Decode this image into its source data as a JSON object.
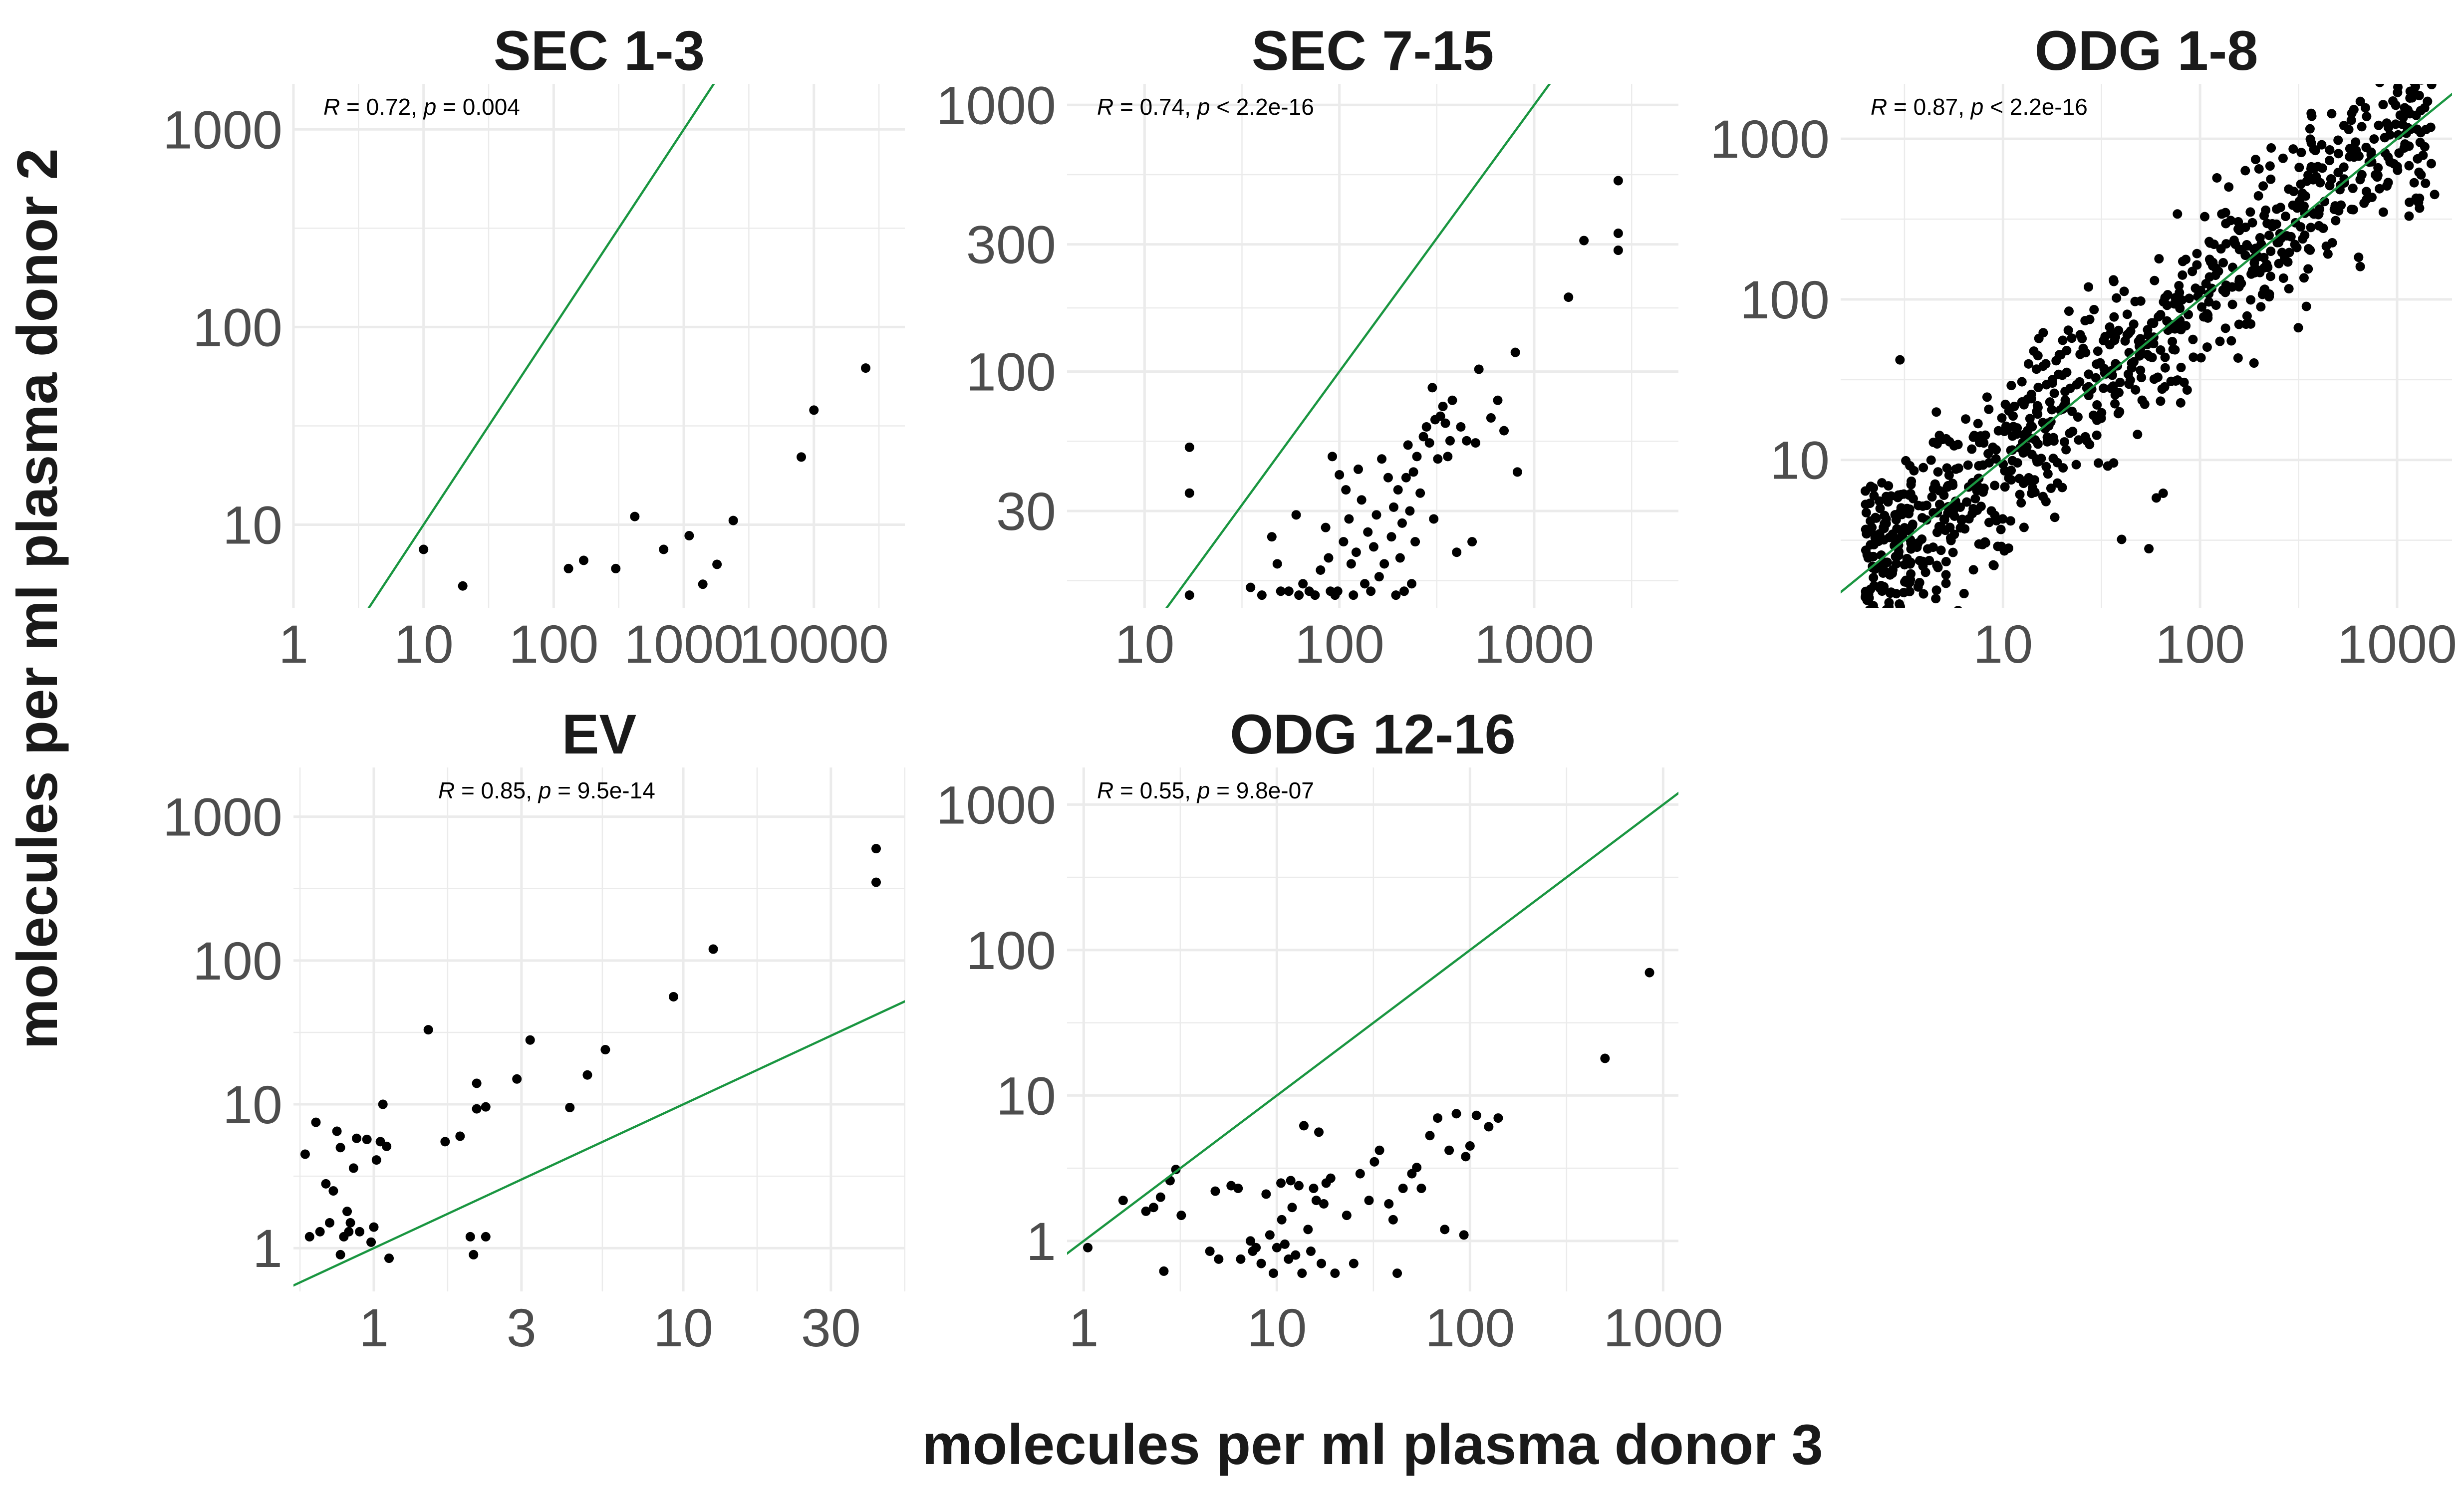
{
  "figure": {
    "xlabel": "molecules per ml plasma donor 3",
    "ylabel": "molecules per ml plasma donor 2",
    "reference_line_color": "#1a9641",
    "point_color": "#000000",
    "grid_color": "#ebebeb",
    "tick_label_color": "#4d4d4d"
  },
  "chart_data": [
    {
      "type": "scatter",
      "title": "SEC 1-3",
      "annotation": {
        "r": "0.72",
        "p_op": "=",
        "p": "0.004"
      },
      "xscale": "log10",
      "yscale": "log10",
      "xlim": [
        1,
        50000
      ],
      "ylim": [
        3.8,
        1700
      ],
      "xticks": [
        1,
        10,
        100,
        1000,
        10000
      ],
      "xtick_labels": [
        "1",
        "10",
        "100",
        "1000",
        "10000"
      ],
      "yticks": [
        10,
        100,
        1000
      ],
      "ytick_labels": [
        "10",
        "100",
        "1000"
      ],
      "reference_line": "y = x",
      "points": [
        [
          10,
          7.5
        ],
        [
          20,
          4.9
        ],
        [
          130,
          6
        ],
        [
          170,
          6.6
        ],
        [
          300,
          6
        ],
        [
          420,
          11
        ],
        [
          700,
          7.5
        ],
        [
          1100,
          8.8
        ],
        [
          1400,
          5
        ],
        [
          1800,
          6.3
        ],
        [
          2400,
          10.5
        ],
        [
          8000,
          22
        ],
        [
          10000,
          38
        ],
        [
          25000,
          62
        ]
      ]
    },
    {
      "type": "scatter",
      "title": "SEC 7-15",
      "annotation": {
        "r": "0.74",
        "p_op": "<",
        "p": "2.2e-16"
      },
      "xscale": "log10",
      "yscale": "log10",
      "xlim": [
        4,
        5500
      ],
      "ylim": [
        13,
        1200
      ],
      "xticks": [
        10,
        100,
        1000
      ],
      "xtick_labels": [
        "10",
        "100",
        "1000"
      ],
      "yticks": [
        30,
        100,
        300,
        1000
      ],
      "ytick_labels": [
        "30",
        "100",
        "300",
        "1000"
      ],
      "reference_line": "y = x",
      "points": [
        [
          17,
          52
        ],
        [
          17,
          35
        ],
        [
          17,
          14.5
        ],
        [
          35,
          15.5
        ],
        [
          40,
          14.5
        ],
        [
          45,
          24
        ],
        [
          48,
          19
        ],
        [
          50,
          15
        ],
        [
          55,
          15
        ],
        [
          60,
          29
        ],
        [
          62,
          14.5
        ],
        [
          65,
          16
        ],
        [
          70,
          15
        ],
        [
          75,
          14.5
        ],
        [
          80,
          18
        ],
        [
          85,
          26
        ],
        [
          88,
          20
        ],
        [
          90,
          15
        ],
        [
          92,
          48
        ],
        [
          95,
          14.5
        ],
        [
          98,
          15
        ],
        [
          100,
          41
        ],
        [
          105,
          23
        ],
        [
          108,
          36
        ],
        [
          112,
          28
        ],
        [
          115,
          19
        ],
        [
          118,
          14.5
        ],
        [
          122,
          21
        ],
        [
          125,
          43
        ],
        [
          130,
          33
        ],
        [
          135,
          16
        ],
        [
          140,
          25
        ],
        [
          145,
          15
        ],
        [
          150,
          22
        ],
        [
          155,
          29
        ],
        [
          160,
          17
        ],
        [
          165,
          47
        ],
        [
          170,
          19
        ],
        [
          178,
          40
        ],
        [
          185,
          24
        ],
        [
          190,
          31
        ],
        [
          195,
          14.5
        ],
        [
          200,
          36
        ],
        [
          205,
          20
        ],
        [
          210,
          27
        ],
        [
          215,
          15
        ],
        [
          220,
          40
        ],
        [
          225,
          53
        ],
        [
          230,
          30
        ],
        [
          235,
          16
        ],
        [
          240,
          42
        ],
        [
          245,
          23
        ],
        [
          250,
          48
        ],
        [
          260,
          35
        ],
        [
          270,
          57
        ],
        [
          280,
          62
        ],
        [
          290,
          54
        ],
        [
          300,
          87
        ],
        [
          305,
          28
        ],
        [
          310,
          66
        ],
        [
          320,
          47
        ],
        [
          330,
          68
        ],
        [
          340,
          74
        ],
        [
          350,
          64
        ],
        [
          360,
          48
        ],
        [
          370,
          55
        ],
        [
          380,
          78
        ],
        [
          400,
          21
        ],
        [
          420,
          62
        ],
        [
          450,
          55
        ],
        [
          480,
          23
        ],
        [
          500,
          54
        ],
        [
          520,
          102
        ],
        [
          600,
          67
        ],
        [
          650,
          78
        ],
        [
          700,
          60
        ],
        [
          800,
          118
        ],
        [
          820,
          42
        ],
        [
          1500,
          190
        ],
        [
          1800,
          310
        ],
        [
          2700,
          520
        ],
        [
          2700,
          330
        ],
        [
          2700,
          285
        ]
      ]
    },
    {
      "type": "scatter",
      "title": "ODG 1-8",
      "annotation": {
        "r": "0.87",
        "p_op": "<",
        "p": "2.2e-16"
      },
      "xscale": "log10",
      "yscale": "log10",
      "xlim": [
        1.5,
        1900
      ],
      "ylim": [
        1.2,
        2200
      ],
      "xticks": [
        10,
        100,
        1000
      ],
      "xtick_labels": [
        "10",
        "100",
        "1000"
      ],
      "yticks": [
        10,
        100,
        1000
      ],
      "ytick_labels": [
        "10",
        "100",
        "1000"
      ],
      "reference_line": "y = x",
      "cloud": {
        "n": 880,
        "x_min": 2,
        "x_max": 1500,
        "slope": 1.0,
        "spread": 0.27
      },
      "points": [
        [
          1250,
          1400
        ],
        [
          1150,
          900
        ],
        [
          1150,
          680
        ],
        [
          1300,
          370
        ],
        [
          1150,
          330
        ],
        [
          1550,
          450
        ],
        [
          800,
          660
        ],
        [
          700,
          420
        ],
        [
          650,
          160
        ],
        [
          3,
          42
        ],
        [
          2.5,
          4
        ],
        [
          2.2,
          2.5
        ],
        [
          60,
          5.8
        ],
        [
          65,
          6.2
        ],
        [
          55,
          2.8
        ],
        [
          16,
          62
        ],
        [
          30,
          22
        ],
        [
          40,
          3.2
        ],
        [
          9,
          2.2
        ],
        [
          3.4,
          2.3
        ],
        [
          24,
          18.5
        ],
        [
          45,
          40
        ]
      ]
    },
    {
      "type": "scatter",
      "title": "EV",
      "annotation": {
        "r": "0.85",
        "p_op": "=",
        "p": "9.5e-14"
      },
      "xscale": "log10",
      "yscale": "log10",
      "xlim": [
        0.55,
        52
      ],
      "ylim": [
        0.5,
        2200
      ],
      "xticks": [
        1,
        3,
        10,
        30
      ],
      "xtick_labels": [
        "1",
        "3",
        "10",
        "30"
      ],
      "yticks": [
        1,
        10,
        100,
        1000
      ],
      "ytick_labels": [
        "1",
        "10",
        "100",
        "1000"
      ],
      "reference_line": "y = x",
      "points": [
        [
          0.6,
          4.5
        ],
        [
          0.62,
          1.2
        ],
        [
          0.65,
          7.5
        ],
        [
          0.67,
          1.3
        ],
        [
          0.7,
          2.8
        ],
        [
          0.72,
          1.5
        ],
        [
          0.74,
          2.5
        ],
        [
          0.76,
          6.5
        ],
        [
          0.78,
          5
        ],
        [
          0.78,
          0.9
        ],
        [
          0.8,
          1.2
        ],
        [
          0.82,
          1.8
        ],
        [
          0.83,
          1.3
        ],
        [
          0.84,
          1.5
        ],
        [
          0.86,
          3.6
        ],
        [
          0.88,
          5.8
        ],
        [
          0.9,
          1.3
        ],
        [
          0.95,
          5.7
        ],
        [
          0.98,
          1.1
        ],
        [
          1.0,
          1.4
        ],
        [
          1.02,
          4.1
        ],
        [
          1.05,
          5.5
        ],
        [
          1.07,
          10
        ],
        [
          1.1,
          5.1
        ],
        [
          1.12,
          0.85
        ],
        [
          1.5,
          33
        ],
        [
          1.7,
          5.5
        ],
        [
          1.9,
          6
        ],
        [
          2.05,
          1.2
        ],
        [
          2.1,
          0.9
        ],
        [
          2.15,
          14
        ],
        [
          2.15,
          9.3
        ],
        [
          2.3,
          9.6
        ],
        [
          2.3,
          1.2
        ],
        [
          2.9,
          15
        ],
        [
          3.2,
          28
        ],
        [
          4.3,
          9.5
        ],
        [
          4.9,
          16
        ],
        [
          5.6,
          24
        ],
        [
          9.3,
          56
        ],
        [
          12.5,
          120
        ],
        [
          42,
          600
        ],
        [
          42,
          350
        ]
      ]
    },
    {
      "type": "scatter",
      "title": "ODG 12-16",
      "annotation": {
        "r": "0.55",
        "p_op": "=",
        "p": "9.8e-07"
      },
      "xscale": "log10",
      "yscale": "log10",
      "xlim": [
        0.82,
        1200
      ],
      "ylim": [
        0.45,
        1800
      ],
      "xticks": [
        1,
        10,
        100,
        1000
      ],
      "xtick_labels": [
        "1",
        "10",
        "100",
        "1000"
      ],
      "yticks": [
        1,
        10,
        100,
        1000
      ],
      "ytick_labels": [
        "1",
        "10",
        "100",
        "1000"
      ],
      "reference_line": "y = x",
      "points": [
        [
          1.05,
          0.9
        ],
        [
          1.6,
          1.9
        ],
        [
          2.1,
          1.6
        ],
        [
          2.3,
          1.7
        ],
        [
          2.5,
          2
        ],
        [
          2.6,
          0.62
        ],
        [
          2.8,
          2.6
        ],
        [
          3.0,
          3.1
        ],
        [
          3.2,
          1.5
        ],
        [
          4.5,
          0.85
        ],
        [
          4.8,
          2.2
        ],
        [
          5.0,
          0.75
        ],
        [
          5.8,
          2.4
        ],
        [
          6.3,
          2.3
        ],
        [
          6.5,
          0.75
        ],
        [
          7.3,
          1
        ],
        [
          7.5,
          0.85
        ],
        [
          7.8,
          0.9
        ],
        [
          8.3,
          0.7
        ],
        [
          8.8,
          2.1
        ],
        [
          9.2,
          1.1
        ],
        [
          9.6,
          0.6
        ],
        [
          10,
          0.9
        ],
        [
          10.5,
          2.5
        ],
        [
          10.6,
          1.4
        ],
        [
          11,
          0.95
        ],
        [
          11.5,
          0.75
        ],
        [
          11.8,
          2.6
        ],
        [
          12,
          1.7
        ],
        [
          12.5,
          0.8
        ],
        [
          13,
          2.4
        ],
        [
          13.5,
          0.6
        ],
        [
          13.8,
          6.2
        ],
        [
          14.5,
          1.2
        ],
        [
          15,
          0.85
        ],
        [
          15.5,
          2.3
        ],
        [
          16,
          1.9
        ],
        [
          16.5,
          5.6
        ],
        [
          17,
          0.7
        ],
        [
          17.5,
          1.8
        ],
        [
          18,
          2.5
        ],
        [
          19,
          2.7
        ],
        [
          20,
          0.6
        ],
        [
          23,
          1.5
        ],
        [
          25,
          0.7
        ],
        [
          27,
          2.9
        ],
        [
          30,
          1.9
        ],
        [
          32,
          3.5
        ],
        [
          34,
          4.2
        ],
        [
          38,
          1.8
        ],
        [
          40,
          1.4
        ],
        [
          42,
          0.6
        ],
        [
          45,
          2.3
        ],
        [
          50,
          2.9
        ],
        [
          53,
          3.2
        ],
        [
          56,
          2.3
        ],
        [
          62,
          5.3
        ],
        [
          68,
          7
        ],
        [
          74,
          1.2
        ],
        [
          78,
          4.2
        ],
        [
          85,
          7.5
        ],
        [
          93,
          1.1
        ],
        [
          95,
          3.8
        ],
        [
          100,
          4.5
        ],
        [
          108,
          7.3
        ],
        [
          125,
          6.1
        ],
        [
          140,
          7
        ],
        [
          500,
          18
        ],
        [
          850,
          70
        ]
      ]
    }
  ]
}
